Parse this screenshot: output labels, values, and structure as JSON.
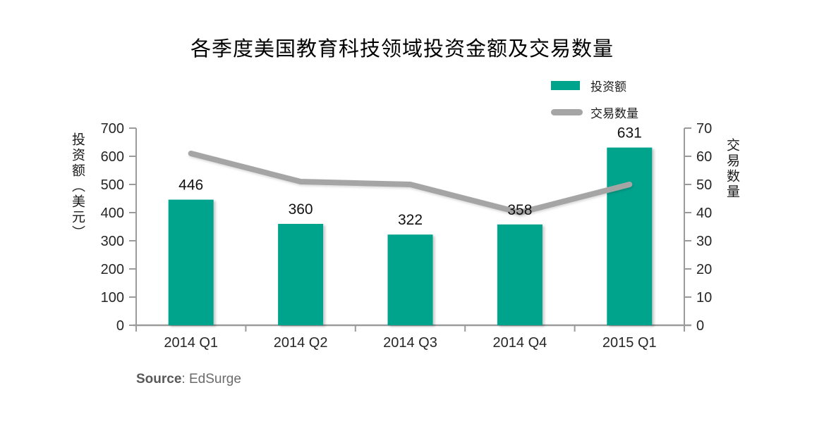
{
  "page": {
    "title": "各季度美国教育科技领域投资金额及交易数量"
  },
  "legend": {
    "items": [
      {
        "label": "投资额",
        "swatch": "bar",
        "color": "#00A38C"
      },
      {
        "label": "交易数量",
        "swatch": "line",
        "color": "#A5A5A5"
      }
    ]
  },
  "footer": {
    "source_label": "Source",
    "source_value": ": EdSurge"
  },
  "chart_data": {
    "type": "combo",
    "title": "各季度美国教育科技领域投资金额及交易数量",
    "categories": [
      "2014 Q1",
      "2014 Q2",
      "2014 Q3",
      "2014 Q4",
      "2015 Q1"
    ],
    "series": [
      {
        "name": "投资额",
        "type": "bar",
        "axis": "left",
        "color": "#00A38C",
        "values": [
          446,
          360,
          322,
          358,
          631
        ],
        "data_labels": [
          446,
          360,
          322,
          358,
          631
        ]
      },
      {
        "name": "交易数量",
        "type": "line",
        "axis": "right",
        "color": "#A5A5A5",
        "values": [
          61,
          51,
          50,
          40,
          50
        ],
        "data_labels": null
      }
    ],
    "left_axis": {
      "title": "投资额（美元）",
      "min": 0,
      "max": 700,
      "step": 100
    },
    "right_axis": {
      "title": "交易数量",
      "min": 0,
      "max": 70,
      "step": 10
    },
    "legend_position": "top-right",
    "grid": false,
    "axis_color": "#9B9B9B",
    "tick_label_color": "#262626",
    "source": "Source: EdSurge"
  }
}
